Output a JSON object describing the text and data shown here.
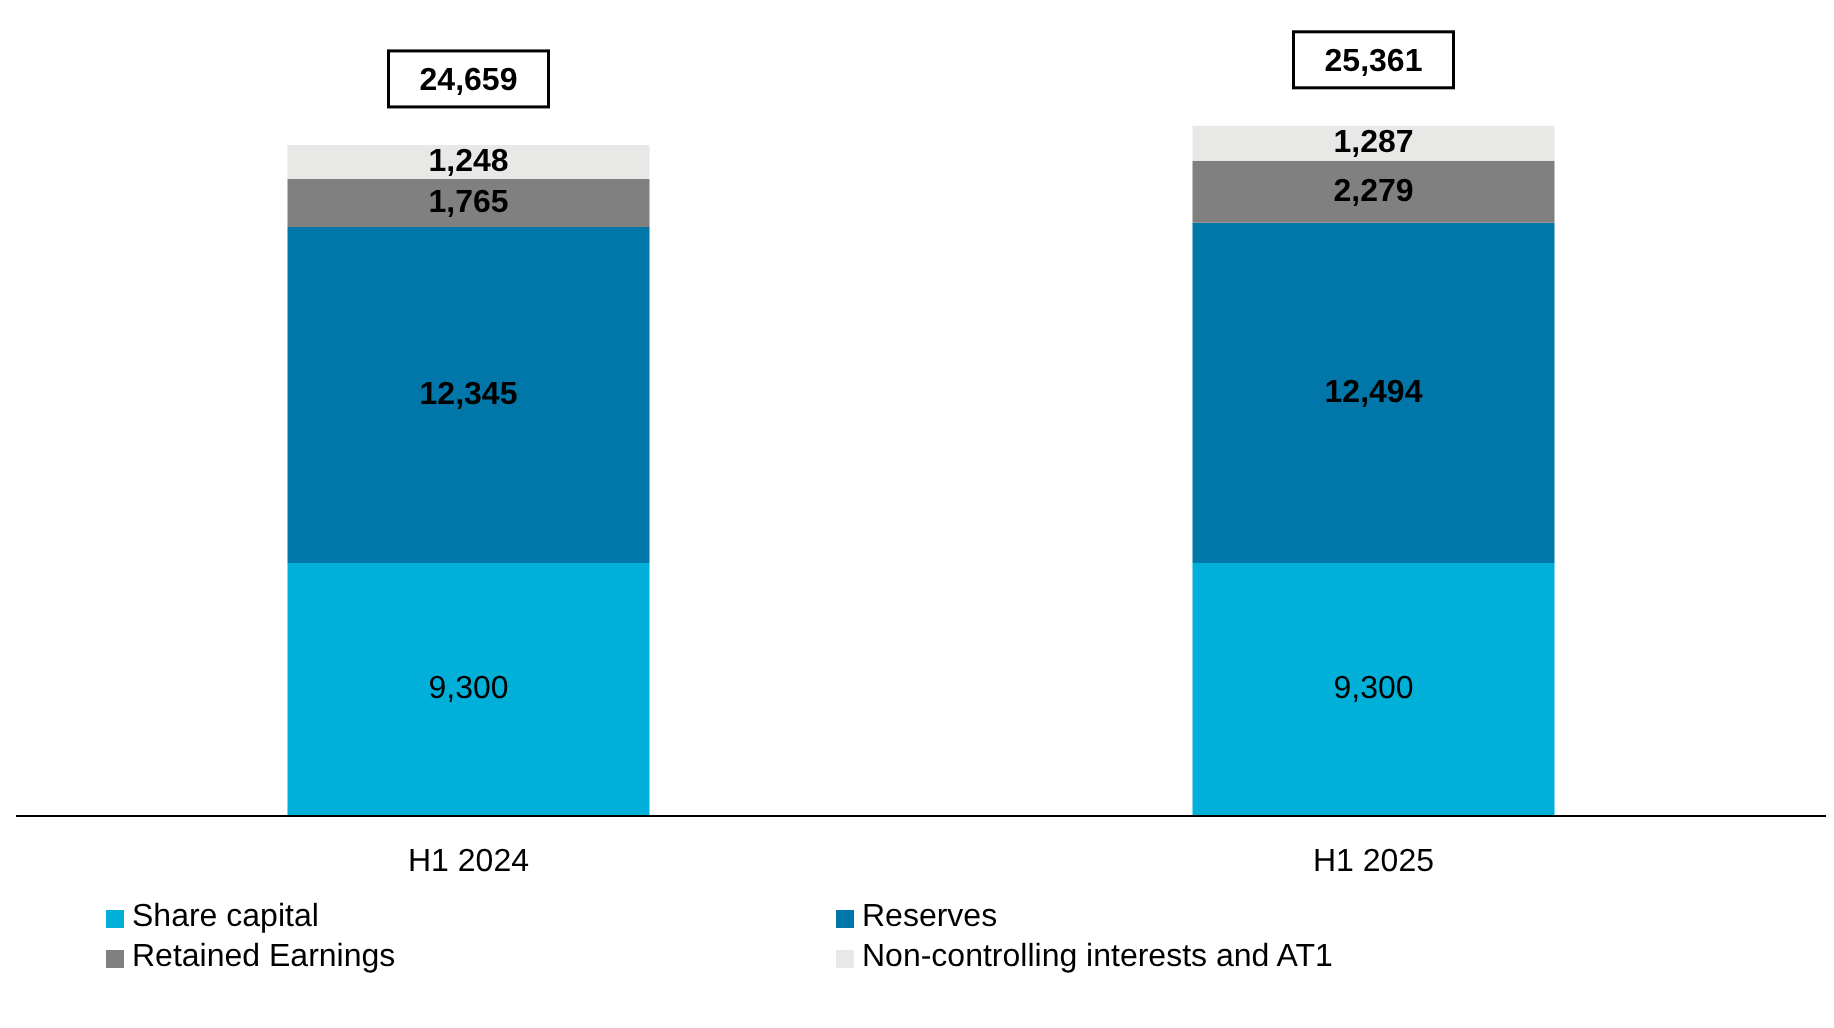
{
  "chart_data": {
    "type": "bar",
    "stacked": true,
    "categories": [
      "H1 2024",
      "H1 2025"
    ],
    "series": [
      {
        "name": "Share capital",
        "color": "#00b0d8",
        "values": [
          9300,
          9300
        ],
        "value_labels": [
          "9,300",
          "9,300"
        ]
      },
      {
        "name": "Reserves",
        "color": "#0077a8",
        "values": [
          12345,
          12494
        ],
        "value_labels": [
          "12,345",
          "12,494"
        ]
      },
      {
        "name": "Retained Earnings",
        "color": "#808080",
        "values": [
          1765,
          2279
        ],
        "value_labels": [
          "1,765",
          "2,279"
        ]
      },
      {
        "name": "Non-controlling interests and AT1",
        "color": "#e8e8e6",
        "values": [
          1248,
          1287
        ],
        "value_labels": [
          "1,248",
          "1,287"
        ]
      }
    ],
    "totals": [
      "24,659",
      "25,361"
    ],
    "legend": "bottom",
    "grid": false
  }
}
